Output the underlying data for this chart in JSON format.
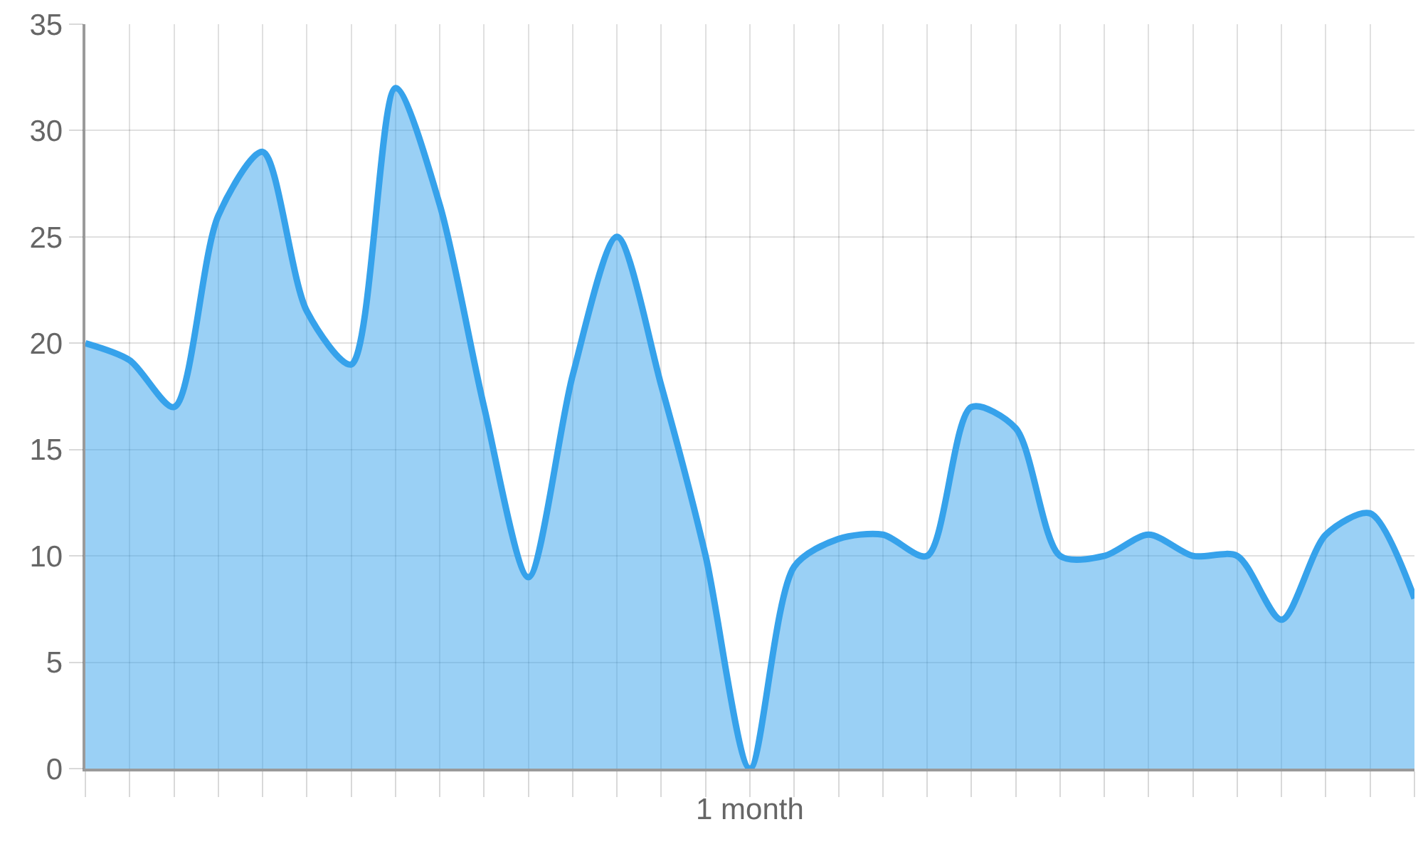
{
  "chart_data": {
    "type": "area",
    "xlabel": "1 month",
    "categories": [
      null,
      null,
      null,
      null,
      null,
      null,
      null,
      null,
      null,
      null,
      null,
      null,
      null,
      null,
      null,
      null,
      null,
      null,
      null,
      null,
      null,
      null,
      null,
      null,
      null,
      null,
      null,
      null,
      null,
      null,
      null
    ],
    "values": [
      20,
      19.2,
      17,
      26,
      29,
      21.5,
      19,
      32,
      26.5,
      17,
      9,
      18.5,
      25,
      18,
      10,
      0,
      9.5,
      10.8,
      11,
      10,
      17,
      16,
      10,
      10,
      11,
      10,
      10,
      7,
      11,
      12,
      8
    ],
    "color": "#36a2eb",
    "ylim": [
      0,
      35
    ],
    "yticks": [
      0,
      5,
      10,
      15,
      20,
      25,
      30,
      35
    ],
    "grid": true,
    "tick_labels": "y"
  }
}
